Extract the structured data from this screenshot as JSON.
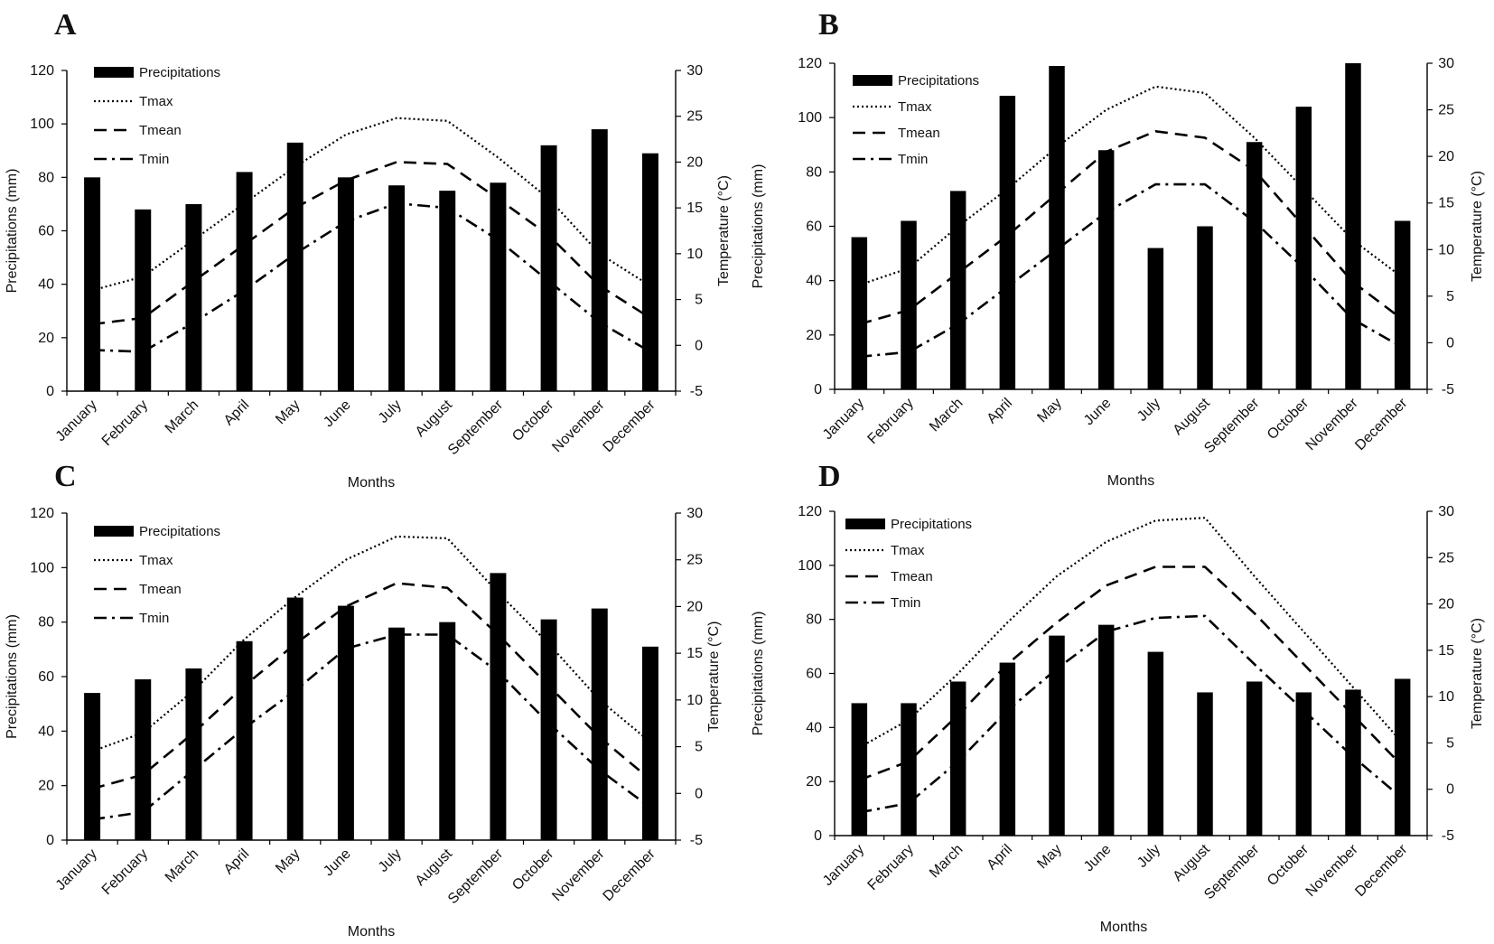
{
  "figure": {
    "xlabel": "Months",
    "ylabel_left": "Precipitations (mm)",
    "ylabel_right": "Temperature (°C)",
    "legend": [
      "Precipitations",
      "Tmax",
      "Tmean",
      "Tmin"
    ],
    "months": [
      "January",
      "February",
      "March",
      "April",
      "May",
      "June",
      "July",
      "August",
      "September",
      "October",
      "November",
      "December"
    ]
  },
  "chart_data": [
    {
      "panel": "A",
      "type": "bar+line",
      "categories": [
        "January",
        "February",
        "March",
        "April",
        "May",
        "June",
        "July",
        "August",
        "September",
        "October",
        "November",
        "December"
      ],
      "ylim_left": [
        0,
        120
      ],
      "yticks_left": [
        0,
        20,
        40,
        60,
        80,
        100,
        120
      ],
      "ylim_right": [
        -5,
        30
      ],
      "yticks_right": [
        -5,
        0,
        5,
        10,
        15,
        20,
        25,
        30
      ],
      "precipitations": [
        80,
        68,
        70,
        82,
        93,
        80,
        77,
        75,
        78,
        92,
        98,
        89
      ],
      "tmax": [
        6.0,
        7.5,
        11.5,
        15.5,
        19.5,
        23.0,
        24.8,
        24.5,
        20.5,
        16.0,
        10.0,
        6.5
      ],
      "tmean": [
        2.3,
        3.0,
        7.0,
        11.0,
        15.0,
        18.0,
        20.0,
        19.8,
        16.0,
        12.0,
        6.5,
        3.0
      ],
      "tmin": [
        -0.5,
        -0.7,
        2.5,
        6.0,
        10.0,
        13.5,
        15.5,
        15.0,
        11.5,
        7.0,
        2.5,
        -0.7
      ]
    },
    {
      "panel": "B",
      "type": "bar+line",
      "categories": [
        "January",
        "February",
        "March",
        "April",
        "May",
        "June",
        "July",
        "August",
        "September",
        "October",
        "November",
        "December"
      ],
      "ylim_left": [
        0,
        120
      ],
      "yticks_left": [
        0,
        20,
        40,
        60,
        80,
        100,
        120
      ],
      "ylim_right": [
        -5,
        30
      ],
      "yticks_right": [
        -5,
        0,
        5,
        10,
        15,
        20,
        25,
        30
      ],
      "precipitations": [
        56,
        62,
        73,
        108,
        119,
        88,
        52,
        60,
        91,
        104,
        120,
        62
      ],
      "tmax": [
        6.2,
        8.0,
        12.5,
        16.5,
        21.0,
        25.0,
        27.5,
        26.8,
        22.0,
        16.5,
        11.0,
        7.0
      ],
      "tmean": [
        2.0,
        3.5,
        7.5,
        11.5,
        16.0,
        20.5,
        22.7,
        22.0,
        18.5,
        12.5,
        6.5,
        2.5
      ],
      "tmin": [
        -1.5,
        -1.0,
        2.0,
        6.0,
        10.0,
        14.0,
        17.0,
        17.0,
        13.0,
        8.0,
        2.5,
        -0.5
      ]
    },
    {
      "panel": "C",
      "type": "bar+line",
      "categories": [
        "January",
        "February",
        "March",
        "April",
        "May",
        "June",
        "July",
        "August",
        "September",
        "October",
        "November",
        "December"
      ],
      "ylim_left": [
        0,
        120
      ],
      "yticks_left": [
        0,
        20,
        40,
        60,
        80,
        100,
        120
      ],
      "ylim_right": [
        -5,
        30
      ],
      "yticks_right": [
        -5,
        0,
        5,
        10,
        15,
        20,
        25,
        30
      ],
      "precipitations": [
        54,
        59,
        63,
        73,
        89,
        86,
        78,
        80,
        98,
        81,
        85,
        71
      ],
      "tmax": [
        4.5,
        6.5,
        11.0,
        16.5,
        21.0,
        25.0,
        27.5,
        27.3,
        21.5,
        16.0,
        10.0,
        5.5
      ],
      "tmean": [
        0.5,
        2.0,
        6.5,
        11.5,
        16.0,
        20.0,
        22.5,
        22.0,
        17.0,
        11.5,
        6.0,
        1.5
      ],
      "tmin": [
        -2.8,
        -2.0,
        2.5,
        7.0,
        11.0,
        15.5,
        17.0,
        17.0,
        13.0,
        7.5,
        2.5,
        -1.5
      ]
    },
    {
      "panel": "D",
      "type": "bar+line",
      "categories": [
        "January",
        "February",
        "March",
        "April",
        "May",
        "June",
        "July",
        "August",
        "September",
        "October",
        "November",
        "December"
      ],
      "ylim_left": [
        0,
        120
      ],
      "yticks_left": [
        0,
        20,
        40,
        60,
        80,
        100,
        120
      ],
      "ylim_right": [
        -5,
        30
      ],
      "yticks_right": [
        -5,
        0,
        5,
        10,
        15,
        20,
        25,
        30
      ],
      "precipitations": [
        49,
        49,
        57,
        64,
        74,
        78,
        68,
        53,
        57,
        53,
        54,
        58
      ],
      "tmax": [
        4.5,
        7.5,
        12.5,
        18.0,
        23.0,
        26.7,
        29.0,
        29.3,
        23.0,
        17.0,
        11.0,
        5.0
      ],
      "tmean": [
        1.0,
        3.0,
        8.0,
        13.5,
        18.0,
        22.0,
        24.0,
        24.0,
        19.0,
        13.5,
        8.0,
        2.5
      ],
      "tmin": [
        -2.5,
        -1.5,
        3.0,
        8.5,
        13.0,
        17.0,
        18.5,
        18.7,
        13.5,
        8.5,
        3.5,
        -1.0
      ]
    }
  ]
}
